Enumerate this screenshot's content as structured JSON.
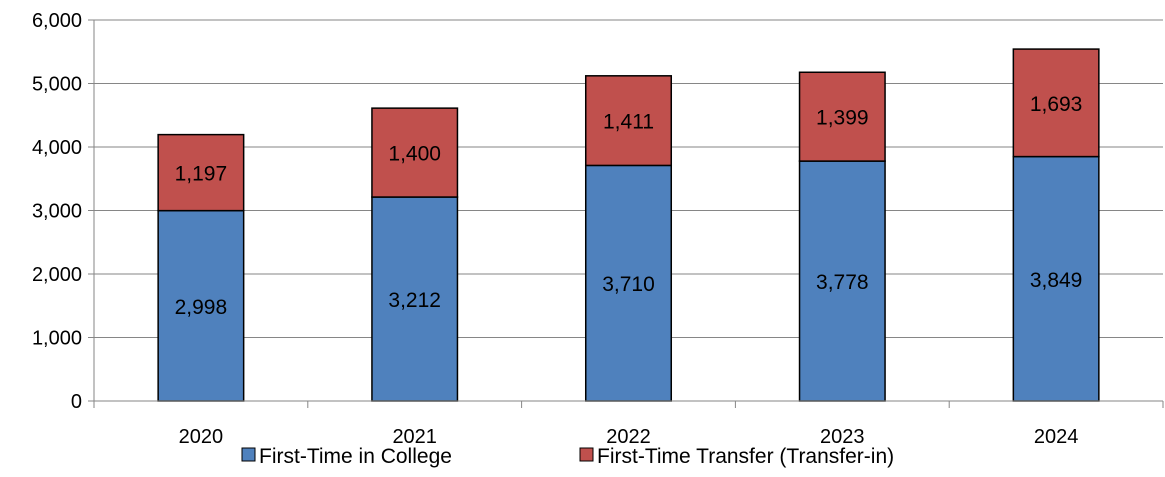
{
  "chart_data": {
    "type": "bar",
    "stacked": true,
    "categories": [
      "2020",
      "2021",
      "2022",
      "2023",
      "2024"
    ],
    "series": [
      {
        "name": "First-Time in College",
        "values": [
          2998,
          3212,
          3710,
          3778,
          3849
        ],
        "labels": [
          "2,998",
          "3,212",
          "3,710",
          "3,778",
          "3,849"
        ],
        "color": "#4f81bd"
      },
      {
        "name": "First-Time Transfer (Transfer-in)",
        "values": [
          1197,
          1400,
          1411,
          1399,
          1693
        ],
        "labels": [
          "1,197",
          "1,400",
          "1,411",
          "1,399",
          "1,693"
        ],
        "color": "#c0504d"
      }
    ],
    "ylim": [
      0,
      6000
    ],
    "yticks": [
      0,
      1000,
      2000,
      3000,
      4000,
      5000,
      6000
    ],
    "ytick_labels": [
      "0",
      "1,000",
      "2,000",
      "3,000",
      "4,000",
      "5,000",
      "6,000"
    ],
    "grid": true,
    "legend_position": "bottom",
    "title": "",
    "xlabel": "",
    "ylabel": ""
  }
}
